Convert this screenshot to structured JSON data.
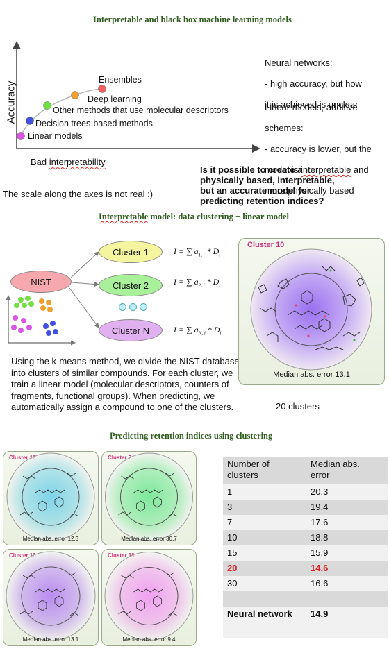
{
  "titles": {
    "top": "Interpretable and black box machine learning models",
    "middle_word": "Interpretable",
    "middle_rest": " model: data clustering + linear model",
    "bottom": "Predicting retention indices using clustering"
  },
  "accuracy_plot": {
    "ylabel": "Accuracy",
    "xlabel_word": "interpretability",
    "xlabel_prefix": "Bad ",
    "points": [
      {
        "label": "Linear models",
        "color": "#d957e4"
      },
      {
        "label": "Decision trees-based methods",
        "color": "#4150e0"
      },
      {
        "label": "Other methods that use molecular descriptors",
        "color": "#6fe040"
      },
      {
        "label": "Deep learning",
        "color": "#f0a030"
      },
      {
        "label": "Ensembles",
        "color": "#f06060"
      }
    ]
  },
  "notes": {
    "neural_title": "Neural networks:",
    "neural_l1": "- high accuracy, but how",
    "neural_l2": "it is achieved is unclear",
    "linear_l1": "Linear models, additive",
    "linear_l2": "schemes:",
    "linear_l3": "- accuracy is lower, but the",
    "linear_l4a": "model is ",
    "linear_l4b": "interpretable",
    "linear_l4c": " and",
    "linear_l5": "more physically based",
    "question": "Is it possible to create a\nphysically based, interpretable,\nbut an accurate model for\npredicting retention indices?",
    "scale": "The scale along the axes is not real :)"
  },
  "clustering": {
    "source": "NIST",
    "clusters": [
      {
        "label": "Cluster 1",
        "color": "#f5f5a0",
        "formula": "I = ∑ a",
        "sub": "1, i",
        "tail": " * D"
      },
      {
        "label": "Cluster 2",
        "color": "#a8f09a",
        "formula": "I = ∑ a",
        "sub": "2, i",
        "tail": " * D"
      },
      {
        "label": "Cluster N",
        "color": "#e0b0f0",
        "formula": "I = ∑ a",
        "sub": "N, i",
        "tail": " * D"
      }
    ],
    "ellipsis_color": "#bfefff",
    "description": "Using the k-means method, we divide the NIST database into clusters of similar compounds. For each cluster, we train a linear model (molecular descriptors, counters of fragments, functional groups). When predicting, we automatically assign a compound to one of the clusters.",
    "big_panel_title": "Cluster 10",
    "big_panel_error": "Median abs. error 13.1",
    "n_clusters_label": "20 clusters"
  },
  "small_panels": [
    {
      "title": "Cluster 12",
      "error": "Median abs. error 12.3",
      "color": "#7fd4e8"
    },
    {
      "title": "Cluster 7",
      "error": "Median abs. error 30.7",
      "color": "#7de89a"
    },
    {
      "title": "Cluster 10",
      "error": "Median abs. error 13.1",
      "color": "#b98cf0"
    },
    {
      "title": "Cluster 19",
      "error": "Median abs. error 9.4",
      "color": "#f0a0f0"
    }
  ],
  "table": {
    "header": [
      "Number of\nclusters",
      "Median abs.\nerror"
    ],
    "rows": [
      [
        "1",
        "20.3"
      ],
      [
        "3",
        "19.4"
      ],
      [
        "7",
        "17.6"
      ],
      [
        "10",
        "18.8"
      ],
      [
        "15",
        "15.9"
      ],
      [
        "20",
        "14.6"
      ],
      [
        "30",
        "16.6"
      ],
      [
        "",
        ""
      ],
      [
        "Neural network",
        "14.9"
      ]
    ],
    "highlight_color": "#e02020"
  }
}
